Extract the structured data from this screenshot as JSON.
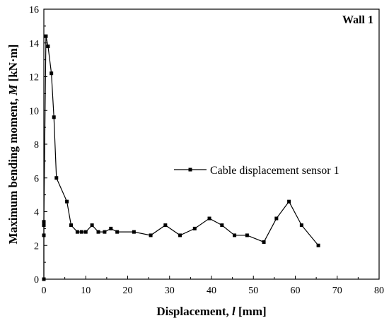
{
  "chart_data": {
    "type": "line",
    "annotation": "Wall 1",
    "xlabel_main": "Displacement, ",
    "xlabel_var": "l",
    "xlabel_unit": " [mm]",
    "ylabel_main": "Maximum bending moment, ",
    "ylabel_var": "M",
    "ylabel_unit": " [kN·m]",
    "xlim": [
      0,
      80
    ],
    "ylim": [
      0,
      16
    ],
    "xticks": [
      0,
      10,
      20,
      30,
      40,
      50,
      60,
      70,
      80
    ],
    "yticks": [
      0,
      2,
      4,
      6,
      8,
      10,
      12,
      14,
      16
    ],
    "legend_position": "right",
    "series": [
      {
        "name": "Cable displacement sensor 1",
        "color": "#000000",
        "marker": "square",
        "x": [
          0,
          0,
          0,
          0,
          0.5,
          1,
          1.8,
          2.4,
          3,
          5.5,
          6.5,
          8,
          9,
          10,
          11.5,
          13,
          14.5,
          16,
          17.5,
          21.5,
          25.5,
          29,
          32.5,
          36,
          39.5,
          42.5,
          45.5,
          48.5,
          52.5,
          55.5,
          58.5,
          61.5,
          65.5
        ],
        "y": [
          0,
          2.6,
          3.2,
          3.4,
          14.4,
          13.8,
          12.2,
          9.6,
          6.0,
          4.6,
          3.2,
          2.8,
          2.8,
          2.8,
          3.2,
          2.8,
          2.8,
          3.0,
          2.8,
          2.8,
          2.6,
          3.2,
          2.6,
          3.0,
          3.6,
          3.2,
          2.6,
          2.6,
          2.2,
          3.6,
          4.6,
          3.2,
          2.0
        ]
      }
    ]
  }
}
